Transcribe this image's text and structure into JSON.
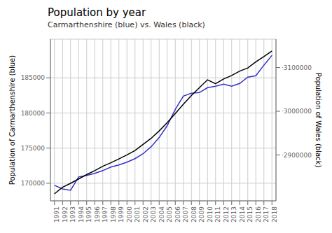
{
  "chart_data": {
    "type": "line",
    "title": "Population by year",
    "subtitle": "Carmarthenshire (blue) vs. Wales (black)",
    "x_label": null,
    "y_label": "Population of Carmarthenshire  (blue)",
    "y2_label": "Population of Wales  (black)",
    "x": [
      1991,
      1992,
      1993,
      1994,
      1995,
      1996,
      1997,
      1998,
      1999,
      2000,
      2001,
      2002,
      2003,
      2004,
      2005,
      2006,
      2007,
      2008,
      2009,
      2010,
      2011,
      2012,
      2013,
      2014,
      2015,
      2016,
      2017,
      2018
    ],
    "xlim": [
      1990.5,
      2018.5
    ],
    "xticks": [
      1991,
      1992,
      1993,
      1994,
      1995,
      1996,
      1997,
      1998,
      1999,
      2000,
      2001,
      2002,
      2003,
      2004,
      2005,
      2006,
      2007,
      2008,
      2009,
      2010,
      2011,
      2012,
      2013,
      2014,
      2015,
      2016,
      2017,
      2018
    ],
    "series": [
      {
        "color": "#3333cc",
        "values": [
          169700,
          169200,
          169000,
          170900,
          171100,
          171400,
          171800,
          172300,
          172600,
          173000,
          173500,
          174200,
          175200,
          176500,
          178200,
          180500,
          182400,
          182800,
          182900,
          183600,
          183800,
          184100,
          183800,
          184200,
          185100,
          185300,
          186800,
          188200
        ]
      },
      {
        "color": "#000000",
        "axis": "y2",
        "values": [
          2811000,
          2826000,
          2835000,
          2845000,
          2855000,
          2864000,
          2874000,
          2882000,
          2891000,
          2900000,
          2910000,
          2924000,
          2938000,
          2955000,
          2974000,
          2995000,
          3016000,
          3036000,
          3054000,
          3072000,
          3063000,
          3074000,
          3082000,
          3092000,
          3099000,
          3113000,
          3125000,
          3138000
        ]
      }
    ],
    "ylim": [
      167500,
      190500
    ],
    "yticks": [
      170000,
      175000,
      180000,
      185000
    ],
    "y2lim": [
      2795000,
      3165000
    ],
    "y2ticks": [
      {
        "value": 2900000,
        "label": "·2900000"
      },
      {
        "value": 3000000,
        "label": "·3000000"
      },
      {
        "value": 3100000,
        "label": "·3100000"
      }
    ],
    "grid": true
  }
}
